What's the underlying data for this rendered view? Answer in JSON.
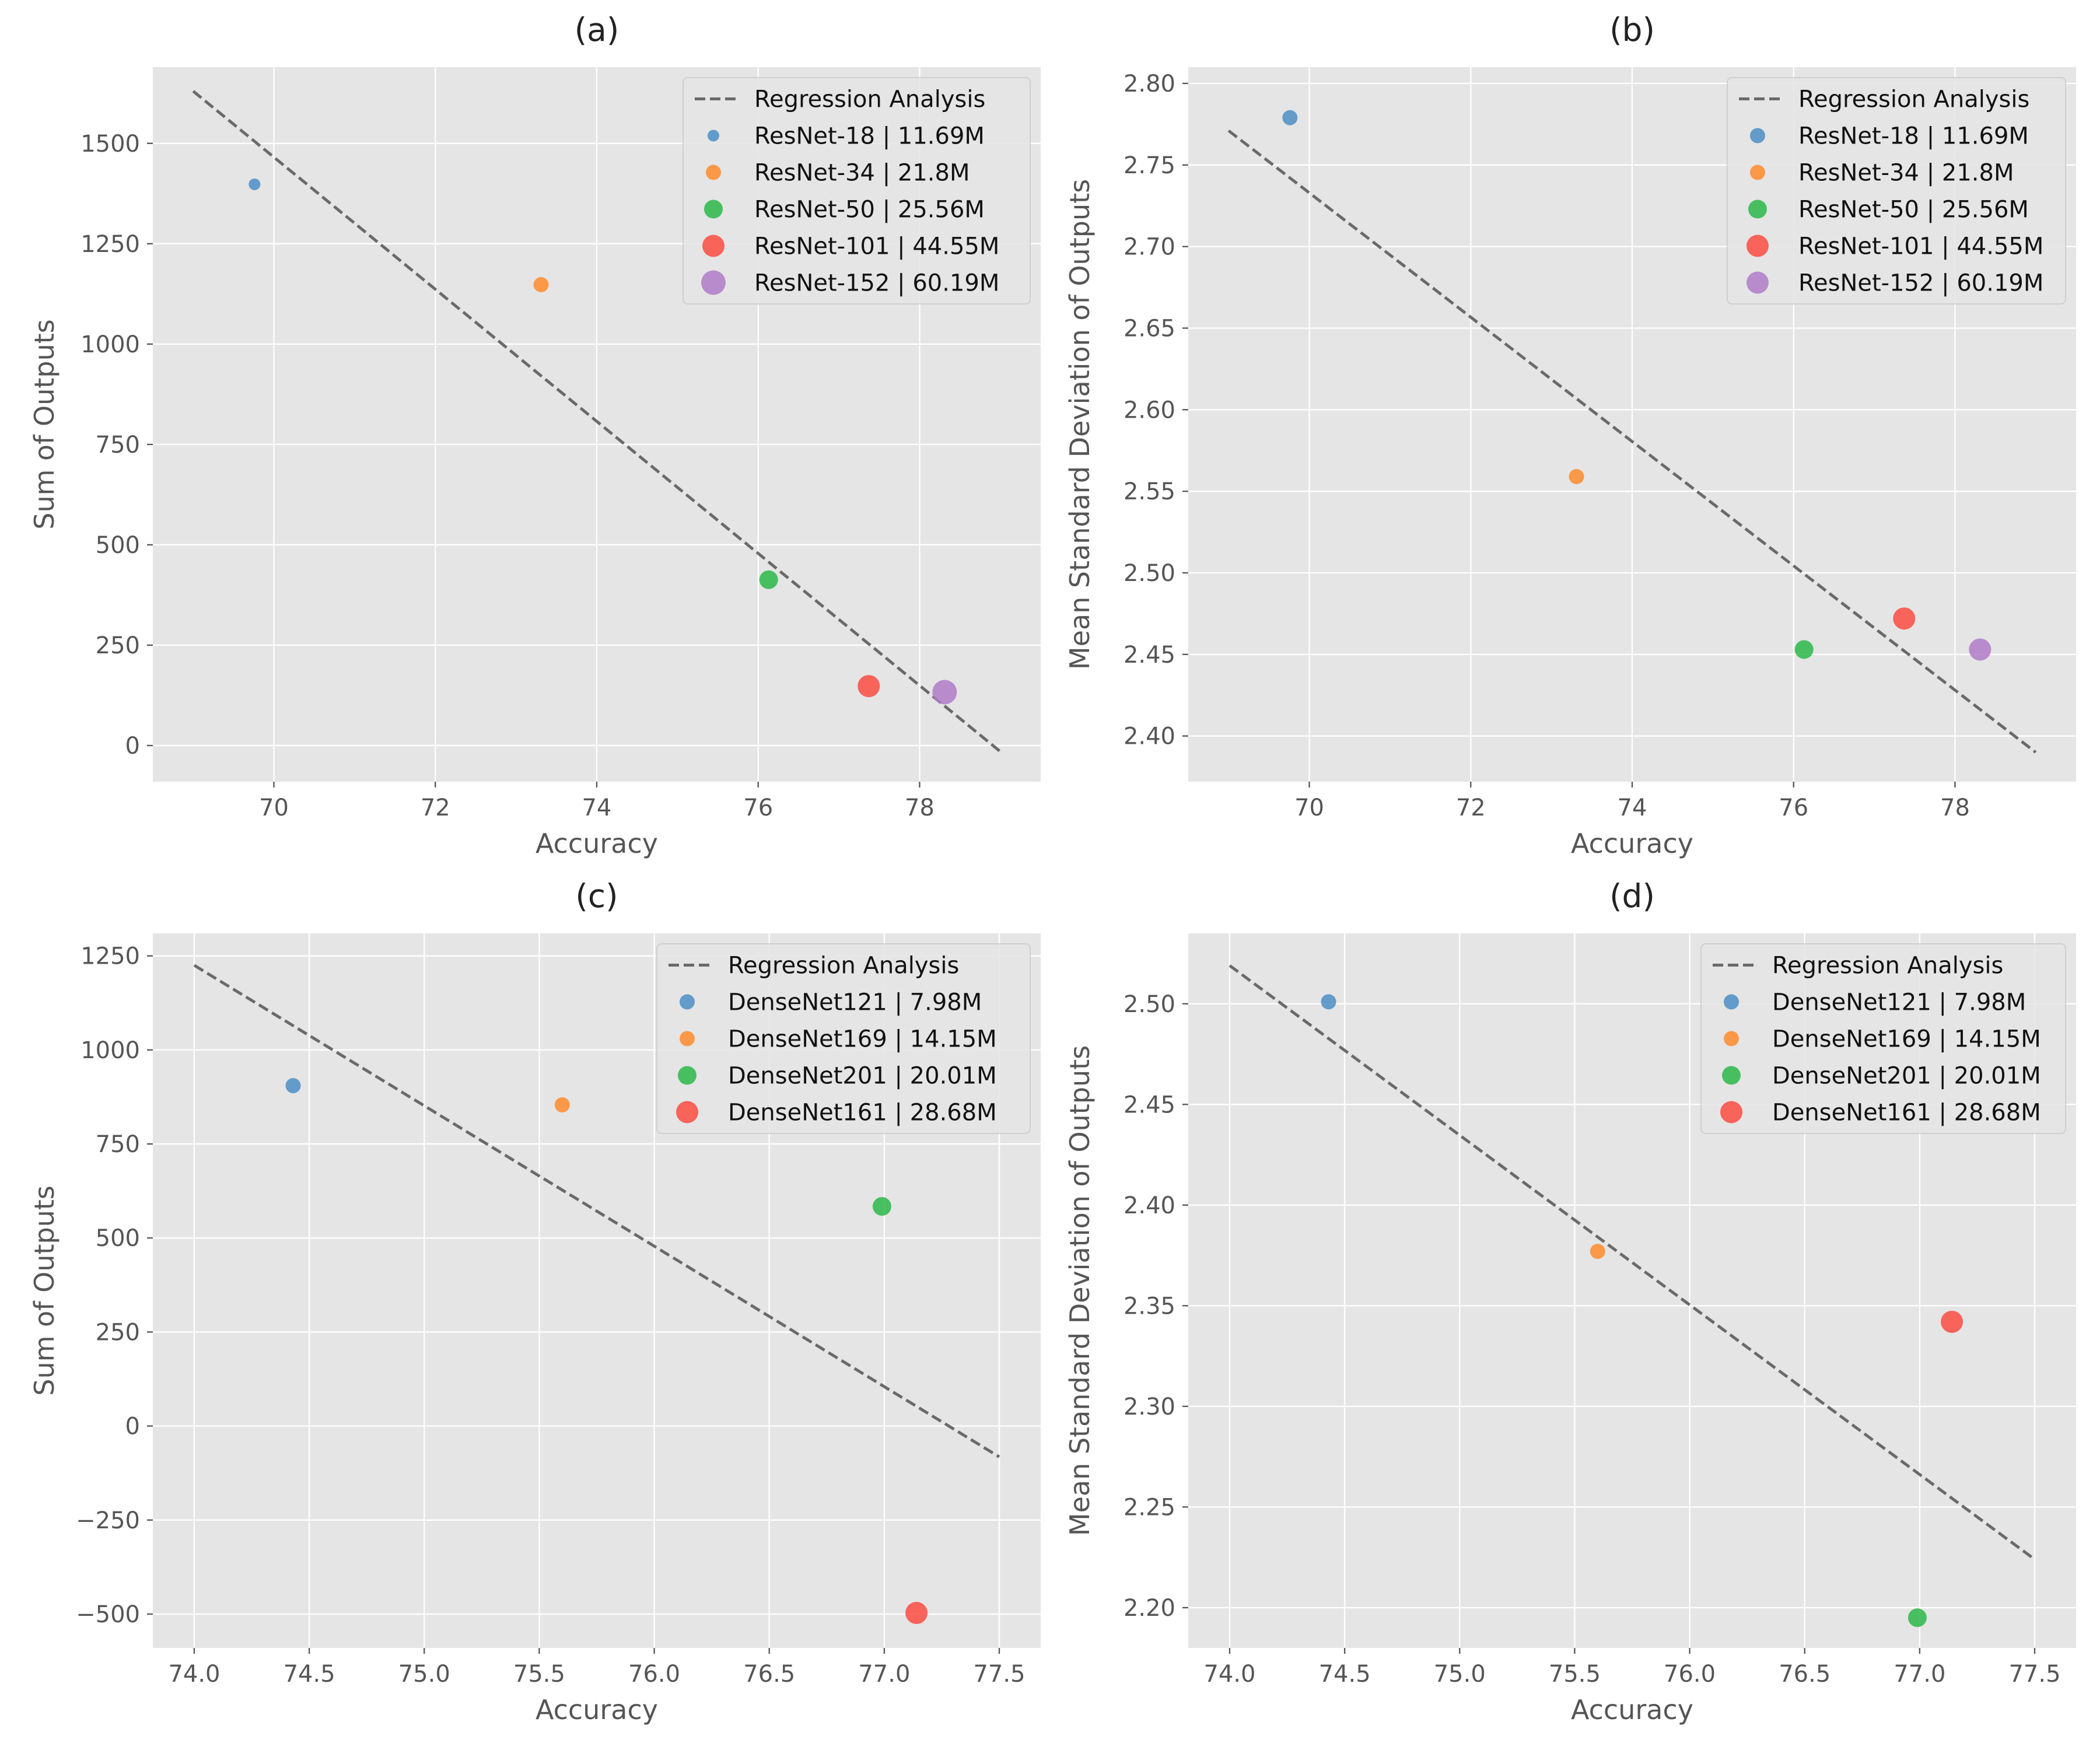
{
  "colors": {
    "series": [
      "#4c8ec5",
      "#ff8c2e",
      "#2cb84a",
      "#fc4c42",
      "#b07dc8"
    ],
    "regression": "#555555",
    "plot_background": "#e5e5e5",
    "grid": "#ffffff"
  },
  "chart_data": [
    {
      "type": "scatter",
      "title": "(a)",
      "xlabel": "Accuracy",
      "ylabel": "Sum of Outputs",
      "xlim": [
        68.5,
        79.5
      ],
      "ylim": [
        -90,
        1690
      ],
      "xticks": [
        70,
        72,
        74,
        76,
        78
      ],
      "xtick_labels": [
        "70",
        "72",
        "74",
        "76",
        "78"
      ],
      "yticks": [
        0,
        250,
        500,
        750,
        1000,
        1250,
        1500
      ],
      "ytick_labels": [
        "0",
        "250",
        "500",
        "750",
        "1000",
        "1250",
        "1500"
      ],
      "legend_position": "top-right",
      "regression": {
        "label": "Regression Analysis",
        "x": [
          69.0,
          79.0
        ],
        "y": [
          1630,
          -15
        ]
      },
      "series": [
        {
          "name": "ResNet-18 | 11.69M",
          "x": 69.76,
          "y": 1398,
          "size": 1
        },
        {
          "name": "ResNet-34 | 21.8M",
          "x": 73.31,
          "y": 1148,
          "size": 2
        },
        {
          "name": "ResNet-50 | 25.56M",
          "x": 76.13,
          "y": 413,
          "size": 3
        },
        {
          "name": "ResNet-101 | 44.55M",
          "x": 77.37,
          "y": 148,
          "size": 4
        },
        {
          "name": "ResNet-152 | 60.19M",
          "x": 78.31,
          "y": 133,
          "size": 5
        }
      ]
    },
    {
      "type": "scatter",
      "title": "(b)",
      "xlabel": "Accuracy",
      "ylabel": "Mean Standard Deviation of Outputs",
      "xlim": [
        68.5,
        79.5
      ],
      "ylim": [
        2.372,
        2.81
      ],
      "xticks": [
        70,
        72,
        74,
        76,
        78
      ],
      "xtick_labels": [
        "70",
        "72",
        "74",
        "76",
        "78"
      ],
      "yticks": [
        2.4,
        2.45,
        2.5,
        2.55,
        2.6,
        2.65,
        2.7,
        2.75,
        2.8
      ],
      "ytick_labels": [
        "2.40",
        "2.45",
        "2.50",
        "2.55",
        "2.60",
        "2.65",
        "2.70",
        "2.75",
        "2.80"
      ],
      "legend_position": "top-right",
      "regression": {
        "label": "Regression Analysis",
        "x": [
          69.0,
          79.0
        ],
        "y": [
          2.771,
          2.39
        ]
      },
      "series": [
        {
          "name": "ResNet-18 | 11.69M",
          "x": 69.76,
          "y": 2.779,
          "size": 2
        },
        {
          "name": "ResNet-34 | 21.8M",
          "x": 73.31,
          "y": 2.559,
          "size": 2
        },
        {
          "name": "ResNet-50 | 25.56M",
          "x": 76.13,
          "y": 2.453,
          "size": 3
        },
        {
          "name": "ResNet-101 | 44.55M",
          "x": 77.37,
          "y": 2.472,
          "size": 4
        },
        {
          "name": "ResNet-152 | 60.19M",
          "x": 78.31,
          "y": 2.453,
          "size": 4
        }
      ]
    },
    {
      "type": "scatter",
      "title": "(c)",
      "xlabel": "Accuracy",
      "ylabel": "Sum of Outputs",
      "xlim": [
        73.82,
        77.68
      ],
      "ylim": [
        -590,
        1310
      ],
      "xticks": [
        74.0,
        74.5,
        75.0,
        75.5,
        76.0,
        76.5,
        77.0,
        77.5
      ],
      "xtick_labels": [
        "74.0",
        "74.5",
        "75.0",
        "75.5",
        "76.0",
        "76.5",
        "77.0",
        "77.5"
      ],
      "yticks": [
        -500,
        -250,
        0,
        250,
        500,
        750,
        1000,
        1250
      ],
      "ytick_labels": [
        "−500",
        "−250",
        "0",
        "250",
        "500",
        "750",
        "1000",
        "1250"
      ],
      "legend_position": "top-right",
      "regression": {
        "label": "Regression Analysis",
        "x": [
          74.0,
          77.5
        ],
        "y": [
          1225,
          -82
        ]
      },
      "series": [
        {
          "name": "DenseNet121 | 7.98M",
          "x": 74.43,
          "y": 905,
          "size": 2
        },
        {
          "name": "DenseNet169 | 14.15M",
          "x": 75.6,
          "y": 854,
          "size": 2
        },
        {
          "name": "DenseNet201 | 20.01M",
          "x": 76.99,
          "y": 584,
          "size": 3
        },
        {
          "name": "DenseNet161 | 28.68M",
          "x": 77.14,
          "y": -497,
          "size": 4
        }
      ]
    },
    {
      "type": "scatter",
      "title": "(d)",
      "xlabel": "Accuracy",
      "ylabel": "Mean Standard Deviation of Outputs",
      "xlim": [
        73.82,
        77.68
      ],
      "ylim": [
        2.18,
        2.535
      ],
      "xticks": [
        74.0,
        74.5,
        75.0,
        75.5,
        76.0,
        76.5,
        77.0,
        77.5
      ],
      "xtick_labels": [
        "74.0",
        "74.5",
        "75.0",
        "75.5",
        "76.0",
        "76.5",
        "77.0",
        "77.5"
      ],
      "yticks": [
        2.2,
        2.25,
        2.3,
        2.35,
        2.4,
        2.45,
        2.5
      ],
      "ytick_labels": [
        "2.20",
        "2.25",
        "2.30",
        "2.35",
        "2.40",
        "2.45",
        "2.50"
      ],
      "legend_position": "top-right",
      "regression": {
        "label": "Regression Analysis",
        "x": [
          74.0,
          77.5
        ],
        "y": [
          2.519,
          2.224
        ]
      },
      "series": [
        {
          "name": "DenseNet121 | 7.98M",
          "x": 74.43,
          "y": 2.501,
          "size": 2
        },
        {
          "name": "DenseNet169 | 14.15M",
          "x": 75.6,
          "y": 2.377,
          "size": 2
        },
        {
          "name": "DenseNet201 | 20.01M",
          "x": 76.99,
          "y": 2.195,
          "size": 3
        },
        {
          "name": "DenseNet161 | 28.68M",
          "x": 77.14,
          "y": 2.342,
          "size": 4
        }
      ]
    }
  ]
}
